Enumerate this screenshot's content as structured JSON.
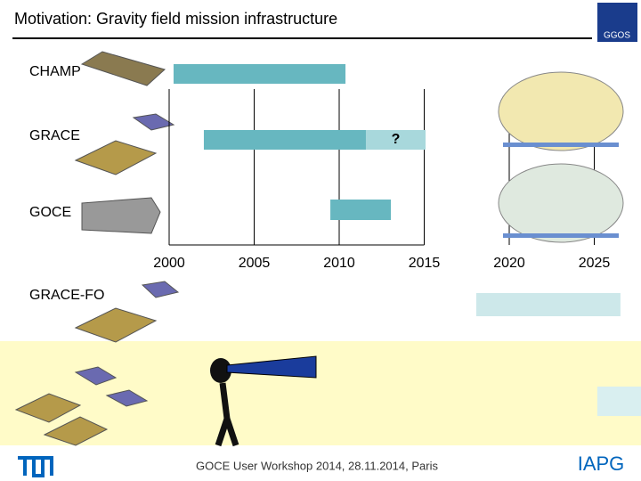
{
  "chart_data": {
    "type": "timeline",
    "title": "Motivation: Gravity field mission infrastructure",
    "categories": [
      "CHAMP",
      "GRACE",
      "GOCE",
      "GRACE-FO",
      null
    ],
    "start": [
      2000.26,
      2002.04,
      2009.48,
      2018.06,
      2025.18
    ],
    "end": [
      2010.37,
      2011.57,
      2013.04,
      2026.54,
      2027.75
    ],
    "colors": [
      "#67b7c0",
      "#67b7c0",
      "#67b7c0",
      "#cde8ea",
      "#d9eff0"
    ],
    "annotation": {
      "text": "?",
      "start": 2011.57,
      "end": 2015.08,
      "color": "#a8d8dc"
    },
    "xlim": [
      2000,
      2025
    ],
    "xticks": [
      2000,
      2005,
      2010,
      2015,
      2020,
      2025
    ],
    "grid": true
  },
  "footer": "GOCE User Workshop 2014, 28.11.2014, Paris",
  "logo_right": "IAPG",
  "logo_top": "GGOS"
}
